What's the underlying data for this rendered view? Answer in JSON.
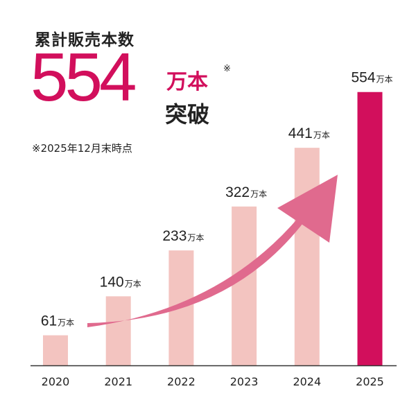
{
  "headline": {
    "subtitle": "累計販売本数",
    "number": "554",
    "unit": "万本",
    "mark": "※",
    "caption": "突破",
    "note": "※2025年12月末時点"
  },
  "colors": {
    "bar": "#f3c4c0",
    "highlight_bar": "#d20f5c",
    "arrow": "#e06a8e",
    "headline": "#d20f5c",
    "text": "#222222"
  },
  "chart_data": {
    "type": "bar",
    "title": "累計販売本数",
    "categories": [
      "2020",
      "2021",
      "2022",
      "2023",
      "2024",
      "2025"
    ],
    "values": [
      61,
      140,
      233,
      322,
      441,
      554
    ],
    "value_unit": "万本",
    "data_labels": [
      "61",
      "140",
      "233",
      "322",
      "441",
      "554"
    ],
    "highlight_index": 5,
    "ylim": [
      0,
      600
    ],
    "grid": false,
    "xlabel": "",
    "ylabel": "",
    "annotation": "upward trend arrow"
  }
}
